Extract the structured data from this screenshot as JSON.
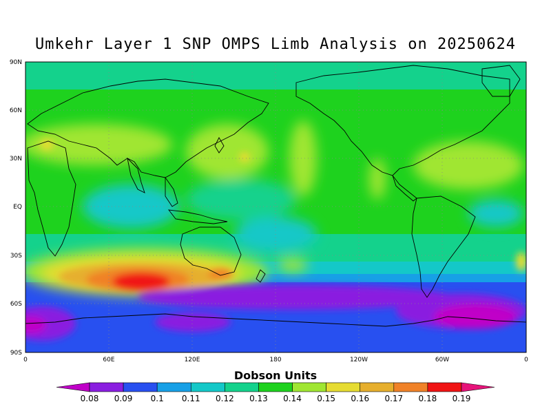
{
  "title": "Umkehr Layer 1 SNP OMPS Limb Analysis on 20250624",
  "map": {
    "lat_ticks": [
      "90N",
      "60N",
      "30N",
      "EQ",
      "30S",
      "60S",
      "90S"
    ],
    "lon_ticks": [
      "0",
      "60E",
      "120E",
      "180",
      "120W",
      "60W",
      "0"
    ],
    "grid": true
  },
  "colorbar": {
    "title": "Dobson Units",
    "levels": [
      "0.08",
      "0.09",
      "0.1",
      "0.11",
      "0.12",
      "0.13",
      "0.14",
      "0.15",
      "0.16",
      "0.17",
      "0.18",
      "0.19"
    ],
    "colors": [
      "#c000c8",
      "#8a1ee0",
      "#2850f0",
      "#17a0e6",
      "#14c8c8",
      "#14d28c",
      "#1ed21e",
      "#a0e632",
      "#e6dc32",
      "#e6af2d",
      "#f08228",
      "#f01414",
      "#e6147a"
    ]
  },
  "chart_data": {
    "type": "heatmap",
    "title": "Umkehr Layer 1 SNP OMPS Limb Analysis on 20250624",
    "colorbar_label": "Dobson Units",
    "lon_range": [
      0,
      360
    ],
    "lat_range": [
      -90,
      90
    ],
    "value_range": [
      0.08,
      0.19
    ],
    "features": [
      {
        "region": "south of Australia (~45S, 60E-110E)",
        "value": 0.19
      },
      {
        "region": "Southern Ocean storm track (~40S, 20E-150E)",
        "value": 0.17
      },
      {
        "region": "Antarctic circumpolar (~60S-90S)",
        "value": 0.09
      },
      {
        "region": "Southern Hemisphere polar minimum (~65S)",
        "value": 0.08
      },
      {
        "region": "tropics / equatorial belt",
        "value": 0.13
      },
      {
        "region": "northern mid-latitudes",
        "value": 0.14
      },
      {
        "region": "North Atlantic / N Africa (~30N)",
        "value": 0.15
      },
      {
        "region": "Arctic",
        "value": 0.13
      }
    ]
  }
}
